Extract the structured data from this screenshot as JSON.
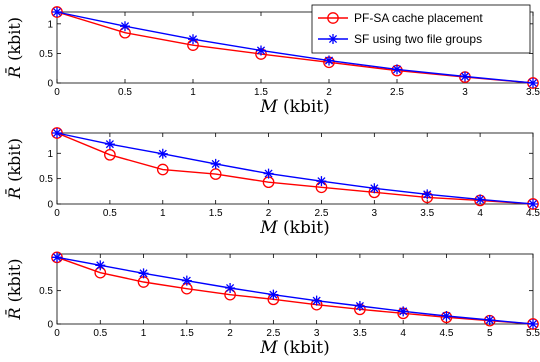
{
  "chart_data": [
    {
      "type": "line",
      "xlabel_var": "M",
      "xlabel_unit": "(kbit)",
      "ylabel_var": "R̄",
      "ylabel_unit": "(kbit)",
      "xlim": [
        0,
        3.5
      ],
      "ylim": [
        0,
        1.2
      ],
      "x_ticks": [
        0,
        0.5,
        1,
        1.5,
        2,
        2.5,
        3,
        3.5
      ],
      "x_tick_labels": [
        "0",
        "0.5",
        "1",
        "1.5",
        "2",
        "2.5",
        "3",
        "3.5"
      ],
      "y_ticks": [
        0,
        0.5,
        1
      ],
      "y_tick_labels": [
        "0",
        "0.5",
        "1"
      ],
      "grid": false,
      "legend": "top-right",
      "series": [
        {
          "name": "PF-SA cache placement",
          "color": "#ff0000",
          "marker": "circle",
          "x": [
            0,
            0.5,
            1,
            1.5,
            2,
            2.5,
            3,
            3.5
          ],
          "y": [
            1.2,
            0.85,
            0.64,
            0.49,
            0.35,
            0.21,
            0.1,
            0
          ]
        },
        {
          "name": "SF using two file groups",
          "color": "#0000ff",
          "marker": "asterisk",
          "x": [
            0,
            0.5,
            1,
            1.5,
            2,
            2.5,
            3,
            3.5
          ],
          "y": [
            1.2,
            0.96,
            0.74,
            0.55,
            0.38,
            0.23,
            0.11,
            0
          ]
        }
      ]
    },
    {
      "type": "line",
      "xlabel_var": "M",
      "xlabel_unit": "(kbit)",
      "ylabel_var": "R̄",
      "ylabel_unit": "(kbit)",
      "xlim": [
        0,
        4.5
      ],
      "ylim": [
        0,
        1.4
      ],
      "x_ticks": [
        0,
        0.5,
        1,
        1.5,
        2,
        2.5,
        3,
        3.5,
        4,
        4.5
      ],
      "x_tick_labels": [
        "0",
        "0.5",
        "1",
        "1.5",
        "2",
        "2.5",
        "3",
        "3.5",
        "4",
        "4.5"
      ],
      "y_ticks": [
        0,
        0.5,
        1
      ],
      "y_tick_labels": [
        "0",
        "0.5",
        "1"
      ],
      "grid": false,
      "series": [
        {
          "color": "#ff0000",
          "marker": "circle",
          "x": [
            0,
            0.5,
            1,
            1.5,
            2,
            2.5,
            3,
            3.5,
            4,
            4.5
          ],
          "y": [
            1.4,
            0.97,
            0.68,
            0.59,
            0.43,
            0.33,
            0.23,
            0.13,
            0.07,
            0
          ]
        },
        {
          "color": "#0000ff",
          "marker": "asterisk",
          "x": [
            0,
            0.5,
            1,
            1.5,
            2,
            2.5,
            3,
            3.5,
            4,
            4.5
          ],
          "y": [
            1.4,
            1.18,
            0.99,
            0.79,
            0.6,
            0.45,
            0.31,
            0.19,
            0.09,
            0
          ]
        }
      ]
    },
    {
      "type": "line",
      "xlabel_var": "M",
      "xlabel_unit": "(kbit)",
      "ylabel_var": "R̄",
      "ylabel_unit": "(kbit)",
      "xlim": [
        0,
        5.5
      ],
      "ylim": [
        0,
        1.05
      ],
      "x_ticks": [
        0,
        0.5,
        1,
        1.5,
        2,
        2.5,
        3,
        3.5,
        4,
        4.5,
        5,
        5.5
      ],
      "x_tick_labels": [
        "0",
        "0.5",
        "1",
        "1.5",
        "2",
        "2.5",
        "3",
        "3.5",
        "4",
        "4.5",
        "5",
        "5.5"
      ],
      "y_ticks": [
        0,
        0.5
      ],
      "y_tick_labels": [
        "0",
        "0.5"
      ],
      "grid": false,
      "series": [
        {
          "color": "#ff0000",
          "marker": "circle",
          "x": [
            0,
            0.5,
            1,
            1.5,
            2,
            2.5,
            3,
            3.5,
            4,
            4.5,
            5,
            5.5
          ],
          "y": [
            1.0,
            0.77,
            0.63,
            0.53,
            0.44,
            0.37,
            0.29,
            0.22,
            0.16,
            0.1,
            0.05,
            0
          ]
        },
        {
          "color": "#0000ff",
          "marker": "asterisk",
          "x": [
            0,
            0.5,
            1,
            1.5,
            2,
            2.5,
            3,
            3.5,
            4,
            4.5,
            5,
            5.5
          ],
          "y": [
            1.0,
            0.88,
            0.76,
            0.65,
            0.54,
            0.44,
            0.35,
            0.27,
            0.19,
            0.12,
            0.06,
            0
          ]
        }
      ]
    }
  ]
}
